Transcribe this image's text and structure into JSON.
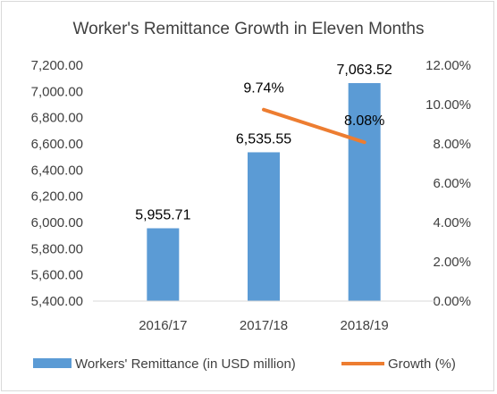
{
  "chart_data": {
    "type": "bar",
    "title": "Worker's Remittance Growth in Eleven Months",
    "categories": [
      "2016/17",
      "2017/18",
      "2018/19"
    ],
    "series": [
      {
        "name": "Workers' Remittance (in USD million)",
        "type": "bar",
        "axis": "left",
        "values": [
          5955.71,
          6535.55,
          7063.52
        ],
        "labels": [
          "5,955.71",
          "6,535.55",
          "7,063.52"
        ],
        "color": "#5b9bd5"
      },
      {
        "name": "Growth (%)",
        "type": "line",
        "axis": "right",
        "values": [
          null,
          9.74,
          8.08
        ],
        "labels": [
          "",
          "9.74%",
          "8.08%"
        ],
        "color": "#ed7d31"
      }
    ],
    "y_left": {
      "min": 5400,
      "max": 7200,
      "ticks": [
        "5,400.00",
        "5,600.00",
        "5,800.00",
        "6,000.00",
        "6,200.00",
        "6,400.00",
        "6,600.00",
        "6,800.00",
        "7,000.00",
        "7,200.00"
      ]
    },
    "y_right": {
      "min": 0,
      "max": 12,
      "ticks": [
        "0.00%",
        "2.00%",
        "4.00%",
        "6.00%",
        "8.00%",
        "10.00%",
        "12.00%"
      ]
    },
    "legend_position": "bottom",
    "grid": false
  }
}
